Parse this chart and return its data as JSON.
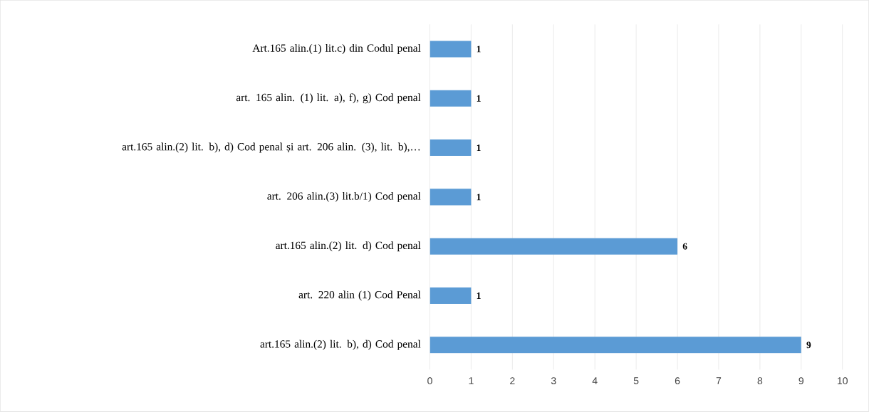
{
  "chart_data": {
    "type": "bar",
    "orientation": "horizontal",
    "categories": [
      "Art.165 alin.(1) lit.c) din Codul penal",
      "art. 165 alin. (1) lit. a), f), g) Cod penal",
      "art.165 alin.(2) lit. b), d) Cod penal și art. 206 alin. (3), lit. b),…",
      "art. 206 alin.(3) lit.b/1) Cod penal",
      "art.165 alin.(2) lit. d) Cod penal",
      "art. 220 alin (1) Cod Penal",
      "art.165 alin.(2) lit. b), d) Cod penal"
    ],
    "values": [
      1,
      1,
      1,
      1,
      6,
      1,
      9
    ],
    "color": "#5b9bd5",
    "xlim": [
      0,
      10
    ],
    "xticks": [
      0,
      1,
      2,
      3,
      4,
      5,
      6,
      7,
      8,
      9,
      10
    ],
    "grid": "x",
    "data_labels": true
  }
}
